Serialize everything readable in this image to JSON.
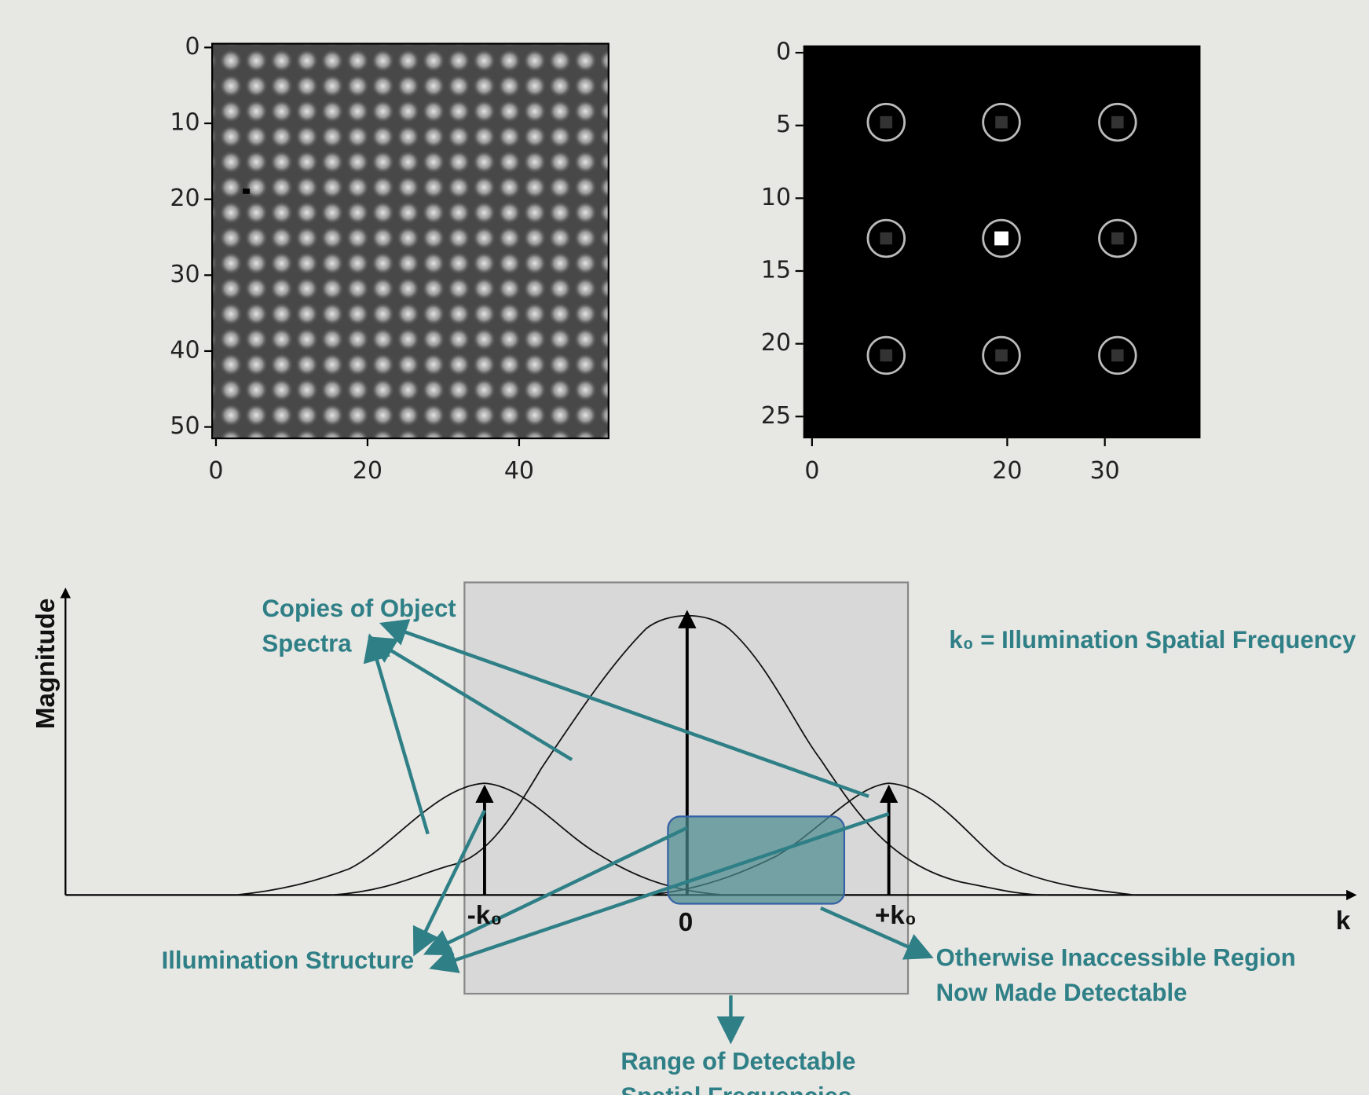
{
  "panels": [
    {
      "xlim": [
        -0.5,
        51.8
      ],
      "ylim": [
        -0.5,
        51.5
      ],
      "xticks": [
        0,
        20,
        40
      ],
      "yticks": [
        0,
        10,
        20,
        30,
        40,
        50
      ]
    },
    {
      "xlim": [
        -0.9,
        39.8
      ],
      "ylim": [
        -0.5,
        26.5
      ],
      "xticks": [
        0,
        20,
        30
      ],
      "yticks": [
        0,
        5,
        10,
        15,
        20,
        25
      ]
    }
  ],
  "diagram": {
    "y_axis_label": "Magnitude",
    "x_axis_label": "k",
    "k_labels": [
      "-k₀",
      "0",
      "+k₀"
    ],
    "definition": "k₀ = Illumination Spatial Frequency",
    "copies_label": [
      "Copies of Object",
      "Spectra"
    ],
    "illumination_label": "Illumination Structure",
    "region_label": [
      "Otherwise Inaccessible Region",
      "Now Made Detectable"
    ],
    "range_label": [
      "Range of Detectable",
      "Spatial Frequencies"
    ]
  }
}
